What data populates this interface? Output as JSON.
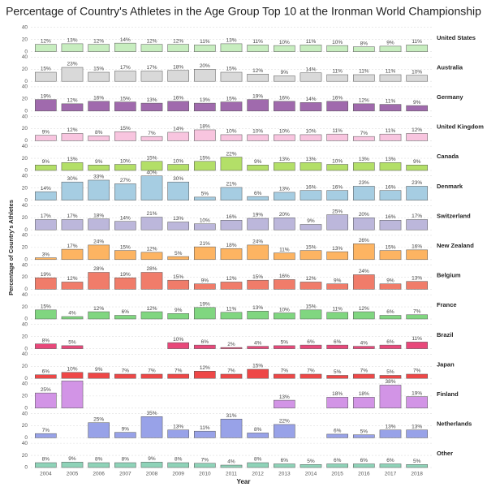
{
  "chart_data": {
    "type": "bar",
    "title": "Percentage of Country's Athletes in the Age Group Top 10 at the Ironman World Championship",
    "x_label": "Year",
    "y_label": "Percentage of Country's Athletes",
    "categories": [
      "2004",
      "2005",
      "2006",
      "2007",
      "2008",
      "2009",
      "2010",
      "2011",
      "2012",
      "2013",
      "2014",
      "2015",
      "2016",
      "2017",
      "2018"
    ],
    "ylim": [
      0,
      45
    ],
    "yticks": [
      0,
      20,
      40
    ],
    "grid": true,
    "series": [
      {
        "name": "United States",
        "color": "#c7edbf",
        "values": [
          12,
          13,
          12,
          14,
          12,
          12,
          11,
          13,
          11,
          10,
          11,
          10,
          8,
          9,
          11
        ],
        "value_labels": [
          "12%",
          "13%",
          "12%",
          "14%",
          "12%",
          "12%",
          "11%",
          "13%",
          "11%",
          "10%",
          "11%",
          "10%",
          "8%",
          "9%",
          "11%"
        ]
      },
      {
        "name": "Australia",
        "color": "#d9d9d9",
        "values": [
          15,
          23,
          15,
          17,
          17,
          18,
          20,
          15,
          12,
          9,
          14,
          11,
          11,
          11,
          10
        ],
        "value_labels": [
          "15%",
          "23%",
          "15%",
          "17%",
          "17%",
          "18%",
          "20%",
          "15%",
          "12%",
          "9%",
          "14%",
          "11%",
          "11%",
          "11%",
          "10%"
        ]
      },
      {
        "name": "Germany",
        "color": "#a06aad",
        "values": [
          19,
          12,
          16,
          15,
          13,
          16,
          13,
          15,
          19,
          16,
          14,
          16,
          12,
          11,
          9
        ],
        "value_labels": [
          "19%",
          "12%",
          "16%",
          "15%",
          "13%",
          "16%",
          "13%",
          "15%",
          "19%",
          "16%",
          "14%",
          "16%",
          "12%",
          "11%",
          "9%"
        ]
      },
      {
        "name": "United Kingdom",
        "color": "#f8c5df",
        "values": [
          9,
          12,
          8,
          15,
          7,
          14,
          18,
          10,
          10,
          10,
          10,
          11,
          7,
          11,
          12
        ],
        "value_labels": [
          "9%",
          "12%",
          "8%",
          "15%",
          "7%",
          "14%",
          "18%",
          "10%",
          "10%",
          "10%",
          "10%",
          "11%",
          "7%",
          "11%",
          "12%"
        ]
      },
      {
        "name": "Canada",
        "color": "#b3df68",
        "values": [
          9,
          13,
          9,
          10,
          15,
          10,
          15,
          22,
          9,
          13,
          13,
          10,
          13,
          13,
          9
        ],
        "value_labels": [
          "9%",
          "13%",
          "9%",
          "10%",
          "15%",
          "10%",
          "15%",
          "22%",
          "9%",
          "13%",
          "13%",
          "10%",
          "13%",
          "13%",
          "9%"
        ]
      },
      {
        "name": "Denmark",
        "color": "#a6cde2",
        "values": [
          14,
          30,
          33,
          27,
          40,
          30,
          5,
          21,
          6,
          13,
          16,
          16,
          23,
          16,
          23
        ],
        "value_labels": [
          "14%",
          "30%",
          "33%",
          "27%",
          "40%",
          "30%",
          "5%",
          "21%",
          "6%",
          "13%",
          "16%",
          "16%",
          "23%",
          "16%",
          "23%"
        ]
      },
      {
        "name": "Switzerland",
        "color": "#bcb7db",
        "values": [
          17,
          17,
          18,
          14,
          21,
          13,
          10,
          16,
          19,
          20,
          9,
          25,
          20,
          16,
          17
        ],
        "value_labels": [
          "17%",
          "17%",
          "18%",
          "14%",
          "21%",
          "13%",
          "10%",
          "16%",
          "19%",
          "20%",
          "9%",
          "25%",
          "20%",
          "16%",
          "17%"
        ]
      },
      {
        "name": "New Zealand",
        "color": "#fdb462",
        "values": [
          3,
          17,
          24,
          15,
          12,
          5,
          21,
          18,
          24,
          11,
          15,
          13,
          26,
          15,
          16
        ],
        "value_labels": [
          "3%",
          "17%",
          "24%",
          "15%",
          "12%",
          "5%",
          "21%",
          "18%",
          "24%",
          "11%",
          "15%",
          "13%",
          "26%",
          "15%",
          "16%"
        ]
      },
      {
        "name": "Belgium",
        "color": "#f07c6a",
        "values": [
          19,
          12,
          28,
          19,
          28,
          15,
          9,
          12,
          15,
          16,
          12,
          9,
          24,
          9,
          13
        ],
        "value_labels": [
          "19%",
          "12%",
          "28%",
          "19%",
          "28%",
          "15%",
          "9%",
          "12%",
          "15%",
          "16%",
          "12%",
          "9%",
          "24%",
          "9%",
          "13%"
        ]
      },
      {
        "name": "France",
        "color": "#80d680",
        "values": [
          15,
          4,
          12,
          6,
          12,
          9,
          19,
          11,
          13,
          10,
          15,
          11,
          12,
          6,
          7
        ],
        "value_labels": [
          "15%",
          "4%",
          "12%",
          "6%",
          "12%",
          "9%",
          "19%",
          "11%",
          "13%",
          "10%",
          "15%",
          "11%",
          "12%",
          "6%",
          "7%"
        ]
      },
      {
        "name": "Brazil",
        "color": "#e8487a",
        "values": [
          8,
          5,
          null,
          null,
          null,
          10,
          6,
          2,
          4,
          5,
          6,
          6,
          4,
          6,
          11
        ],
        "value_labels": [
          "8%",
          "5%",
          null,
          null,
          null,
          "10%",
          "6%",
          "2%",
          "4%",
          "5%",
          "6%",
          "6%",
          "4%",
          "6%",
          "11%"
        ]
      },
      {
        "name": "Japan",
        "color": "#ee4747",
        "values": [
          6,
          10,
          9,
          7,
          7,
          7,
          12,
          7,
          15,
          7,
          7,
          5,
          7,
          5,
          7
        ],
        "value_labels": [
          "6%",
          "10%",
          "9%",
          "7%",
          "7%",
          "7%",
          "12%",
          "7%",
          "15%",
          "7%",
          "7%",
          "5%",
          "7%",
          "5%",
          "7%"
        ]
      },
      {
        "name": "Finland",
        "color": "#d294e6",
        "values": [
          25,
          45,
          null,
          null,
          null,
          null,
          null,
          null,
          null,
          13,
          null,
          18,
          18,
          38,
          19
        ],
        "value_labels": [
          "25%",
          null,
          null,
          null,
          null,
          null,
          null,
          null,
          null,
          "13%",
          null,
          "18%",
          "18%",
          "38%",
          "19%"
        ]
      },
      {
        "name": "Netherlands",
        "color": "#98a2e8",
        "values": [
          7,
          null,
          25,
          9,
          35,
          13,
          11,
          31,
          8,
          22,
          null,
          6,
          5,
          13,
          13
        ],
        "value_labels": [
          "7%",
          null,
          "25%",
          "9%",
          "35%",
          "13%",
          "11%",
          "31%",
          "8%",
          "22%",
          null,
          "6%",
          "5%",
          "13%",
          "13%"
        ]
      },
      {
        "name": "Other",
        "color": "#8ed3b8",
        "values": [
          8,
          9,
          8,
          8,
          9,
          8,
          7,
          4,
          8,
          6,
          5,
          6,
          6,
          6,
          5
        ],
        "value_labels": [
          "8%",
          "9%",
          "8%",
          "8%",
          "9%",
          "8%",
          "7%",
          "4%",
          "8%",
          "6%",
          "5%",
          "6%",
          "6%",
          "6%",
          "5%"
        ]
      }
    ]
  }
}
